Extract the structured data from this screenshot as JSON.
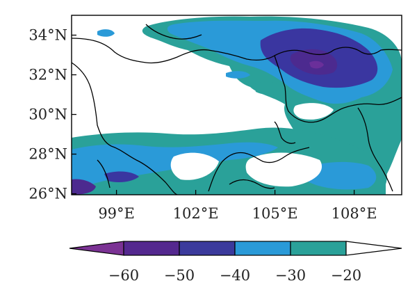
{
  "map": {
    "lat_labels": [
      "34°N",
      "32°N",
      "30°N",
      "28°N",
      "26°N"
    ],
    "lon_labels": [
      "99°E",
      "102°E",
      "105°E",
      "108°E"
    ],
    "lat_values": [
      34,
      32,
      30,
      28,
      26
    ],
    "lon_values": [
      99,
      102,
      105,
      108
    ],
    "extent": {
      "lon": [
        97.3,
        109.8
      ],
      "lat": [
        25.95,
        35.0
      ]
    }
  },
  "colorbar": {
    "labels": [
      "−60",
      "−50",
      "−40",
      "−30",
      "−20"
    ],
    "boundaries": [
      -60,
      -50,
      -40,
      -30,
      -20
    ],
    "colors": [
      "#7b3294",
      "#4c2a8f",
      "#3a36a0",
      "#2a9ad8",
      "#2aa199",
      "#ffffff"
    ],
    "extend": "both"
  },
  "legend_colors": {
    "lt_-60": "#7b3294",
    "-60_-50": "#54288f",
    "-50_-40": "#3b3a9c",
    "-40_-30": "#2a9ad8",
    "-30_-20": "#2aa199",
    "gt_-20": "#ffffff"
  }
}
